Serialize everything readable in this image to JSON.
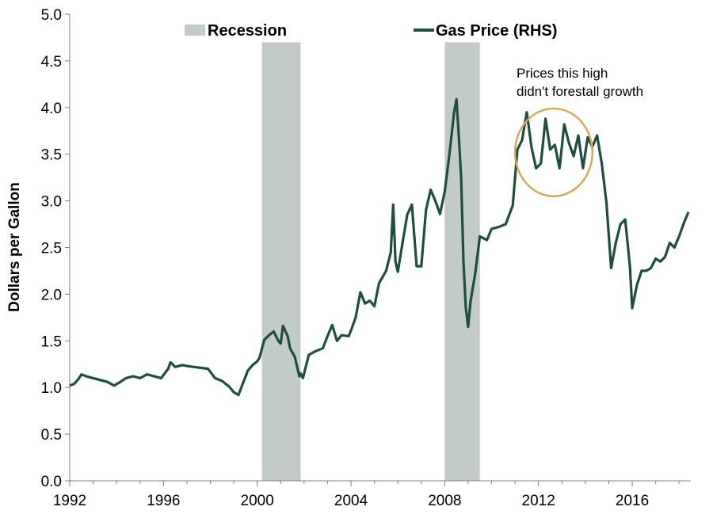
{
  "chart_data": {
    "type": "line",
    "title": "",
    "xlabel": "",
    "ylabel": "Dollars per Gallon",
    "xlim": [
      1992,
      2018.5
    ],
    "ylim": [
      0,
      5
    ],
    "x_ticks": [
      "1992",
      "1996",
      "2000",
      "2004",
      "2008",
      "2012",
      "2016"
    ],
    "y_ticks": [
      "0.0",
      "0.5",
      "1.0",
      "1.5",
      "2.0",
      "2.5",
      "3.0",
      "3.5",
      "4.0",
      "4.5",
      "5.0"
    ],
    "grid": false,
    "legend": {
      "placement": "top",
      "recession_label": "Recession",
      "series_label": "Gas Price (RHS)"
    },
    "recessions": [
      {
        "start": 2000.2,
        "end": 2001.85
      },
      {
        "start": 2008.0,
        "end": 2009.5
      }
    ],
    "annotation": {
      "text_line1": "Prices this high",
      "text_line2": "didn't forestall growth",
      "circle_center": [
        2012.65,
        3.52
      ],
      "circle_radius_x": 1.65,
      "circle_radius_y": 0.47
    },
    "series": [
      {
        "name": "Gas Price (RHS)",
        "color": "#1f4e3d",
        "x": [
          1992.0,
          1992.2,
          1992.4,
          1992.5,
          1992.7,
          1993.0,
          1993.3,
          1993.6,
          1993.9,
          1994.1,
          1994.4,
          1994.7,
          1995.0,
          1995.3,
          1995.6,
          1995.9,
          1996.2,
          1996.3,
          1996.5,
          1996.8,
          1997.0,
          1997.3,
          1997.6,
          1997.9,
          1998.2,
          1998.5,
          1998.8,
          1999.0,
          1999.2,
          1999.4,
          1999.6,
          1999.8,
          2000.0,
          2000.1,
          2000.3,
          2000.5,
          2000.7,
          2000.9,
          2001.0,
          2001.1,
          2001.3,
          2001.4,
          2001.6,
          2001.8,
          2001.85,
          2001.95,
          2002.2,
          2002.5,
          2002.8,
          2003.0,
          2003.2,
          2003.4,
          2003.6,
          2003.9,
          2004.0,
          2004.2,
          2004.4,
          2004.6,
          2004.8,
          2005.0,
          2005.2,
          2005.5,
          2005.7,
          2005.8,
          2005.9,
          2006.0,
          2006.2,
          2006.4,
          2006.6,
          2006.8,
          2007.0,
          2007.2,
          2007.4,
          2007.6,
          2007.8,
          2008.0,
          2008.2,
          2008.4,
          2008.5,
          2008.6,
          2008.7,
          2008.8,
          2008.9,
          2009.0,
          2009.1,
          2009.3,
          2009.5,
          2009.8,
          2010.0,
          2010.3,
          2010.6,
          2010.9,
          2011.1,
          2011.3,
          2011.5,
          2011.7,
          2011.9,
          2012.1,
          2012.3,
          2012.5,
          2012.7,
          2012.9,
          2013.1,
          2013.3,
          2013.5,
          2013.7,
          2013.9,
          2014.1,
          2014.3,
          2014.5,
          2014.7,
          2014.9,
          2015.1,
          2015.3,
          2015.5,
          2015.7,
          2015.9,
          2016.0,
          2016.2,
          2016.4,
          2016.6,
          2016.8,
          2017.0,
          2017.2,
          2017.4,
          2017.6,
          2017.8,
          2018.0,
          2018.2,
          2018.4
        ],
        "values": [
          1.02,
          1.04,
          1.1,
          1.14,
          1.12,
          1.1,
          1.08,
          1.06,
          1.02,
          1.05,
          1.1,
          1.12,
          1.1,
          1.14,
          1.12,
          1.1,
          1.2,
          1.27,
          1.22,
          1.24,
          1.23,
          1.22,
          1.21,
          1.2,
          1.1,
          1.07,
          1.01,
          0.95,
          0.92,
          1.05,
          1.18,
          1.24,
          1.28,
          1.32,
          1.51,
          1.56,
          1.6,
          1.5,
          1.47,
          1.66,
          1.55,
          1.42,
          1.33,
          1.12,
          1.15,
          1.1,
          1.35,
          1.39,
          1.42,
          1.55,
          1.67,
          1.5,
          1.56,
          1.55,
          1.61,
          1.75,
          2.02,
          1.9,
          1.93,
          1.87,
          2.12,
          2.25,
          2.45,
          2.96,
          2.35,
          2.24,
          2.55,
          2.85,
          2.96,
          2.3,
          2.3,
          2.9,
          3.12,
          3.0,
          2.86,
          3.1,
          3.5,
          3.95,
          4.09,
          3.7,
          3.25,
          2.35,
          1.85,
          1.65,
          1.92,
          2.22,
          2.62,
          2.58,
          2.7,
          2.72,
          2.75,
          2.95,
          3.55,
          3.65,
          3.95,
          3.58,
          3.35,
          3.4,
          3.88,
          3.55,
          3.6,
          3.35,
          3.82,
          3.62,
          3.48,
          3.7,
          3.35,
          3.68,
          3.58,
          3.7,
          3.4,
          2.98,
          2.28,
          2.55,
          2.75,
          2.8,
          2.3,
          1.85,
          2.1,
          2.25,
          2.25,
          2.28,
          2.38,
          2.35,
          2.4,
          2.55,
          2.5,
          2.62,
          2.76,
          2.88
        ]
      }
    ]
  }
}
